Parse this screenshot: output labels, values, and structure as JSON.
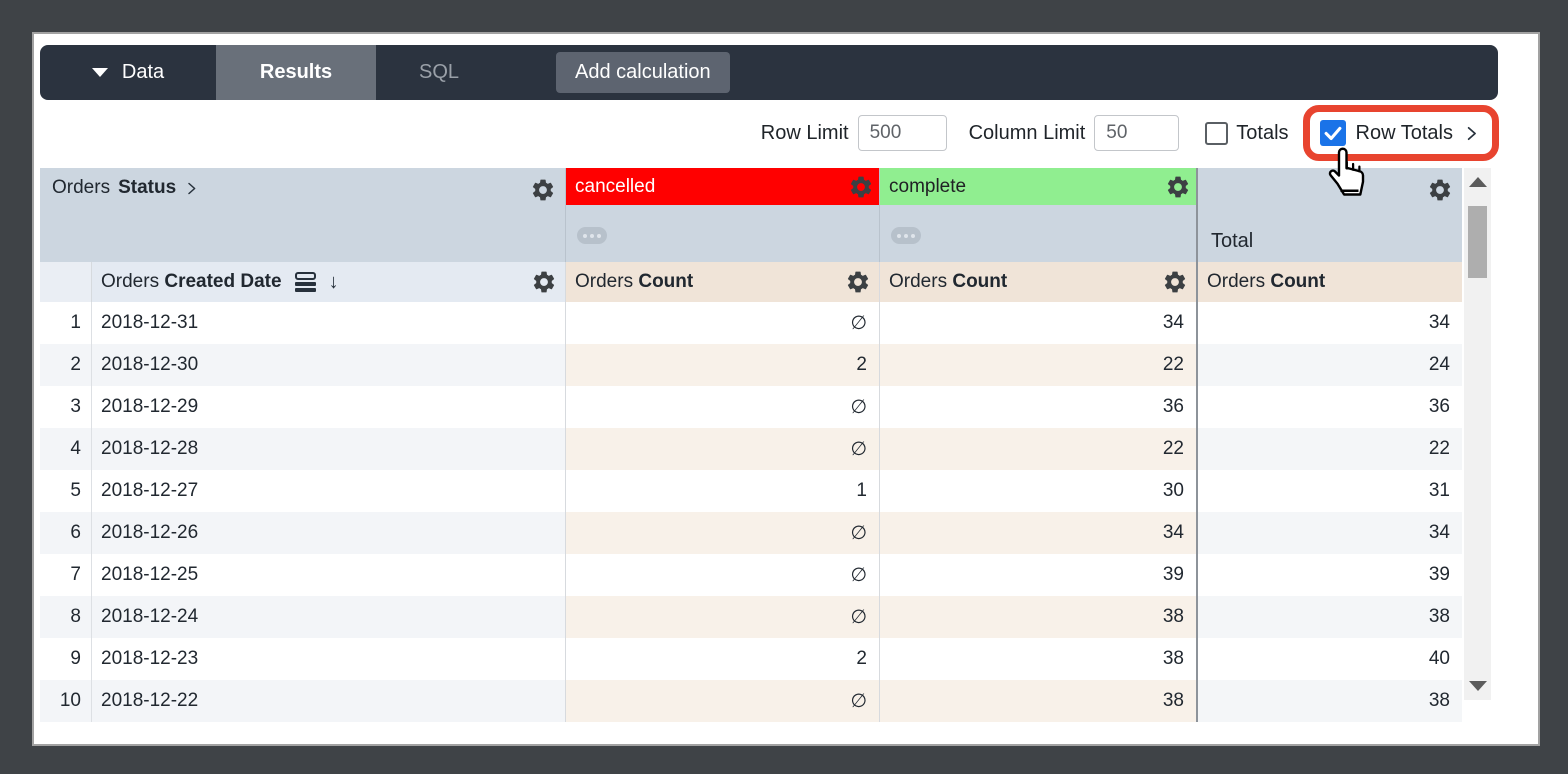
{
  "topbar": {
    "data_tab": "Data",
    "results_tab": "Results",
    "sql_tab": "SQL",
    "add_calculation": "Add calculation"
  },
  "controls": {
    "row_limit_label": "Row Limit",
    "row_limit_value": "500",
    "column_limit_label": "Column Limit",
    "column_limit_value": "50",
    "totals_label": "Totals",
    "row_totals_label": "Row Totals"
  },
  "colors": {
    "accent_blue": "#1a73e8",
    "annotation_red": "#e8442f",
    "cancelled_chip": "#ff0000",
    "complete_chip": "#90ee90",
    "pivot_band": "#ccd6e0",
    "measure_header": "#f0e4d8"
  },
  "table": {
    "pivot_field": {
      "view": "Orders",
      "field": "Status"
    },
    "row_field": {
      "view": "Orders",
      "field": "Created Date"
    },
    "measure_label": {
      "view": "Orders",
      "field": "Count"
    },
    "pivot_values": [
      {
        "label": "cancelled",
        "color": "#ff0000",
        "text_color": "#ffffff"
      },
      {
        "label": "complete",
        "color": "#90ee90",
        "text_color": "#202124"
      }
    ],
    "total_label": "Total",
    "null_symbol": "∅",
    "rows": [
      {
        "index": "1",
        "date": "2018-12-31",
        "cancelled": "∅",
        "complete": "34",
        "total": "34"
      },
      {
        "index": "2",
        "date": "2018-12-30",
        "cancelled": "2",
        "complete": "22",
        "total": "24"
      },
      {
        "index": "3",
        "date": "2018-12-29",
        "cancelled": "∅",
        "complete": "36",
        "total": "36"
      },
      {
        "index": "4",
        "date": "2018-12-28",
        "cancelled": "∅",
        "complete": "22",
        "total": "22"
      },
      {
        "index": "5",
        "date": "2018-12-27",
        "cancelled": "1",
        "complete": "30",
        "total": "31"
      },
      {
        "index": "6",
        "date": "2018-12-26",
        "cancelled": "∅",
        "complete": "34",
        "total": "34"
      },
      {
        "index": "7",
        "date": "2018-12-25",
        "cancelled": "∅",
        "complete": "39",
        "total": "39"
      },
      {
        "index": "8",
        "date": "2018-12-24",
        "cancelled": "∅",
        "complete": "38",
        "total": "38"
      },
      {
        "index": "9",
        "date": "2018-12-23",
        "cancelled": "2",
        "complete": "38",
        "total": "40"
      },
      {
        "index": "10",
        "date": "2018-12-22",
        "cancelled": "∅",
        "complete": "38",
        "total": "38",
        "partial": true
      }
    ]
  }
}
